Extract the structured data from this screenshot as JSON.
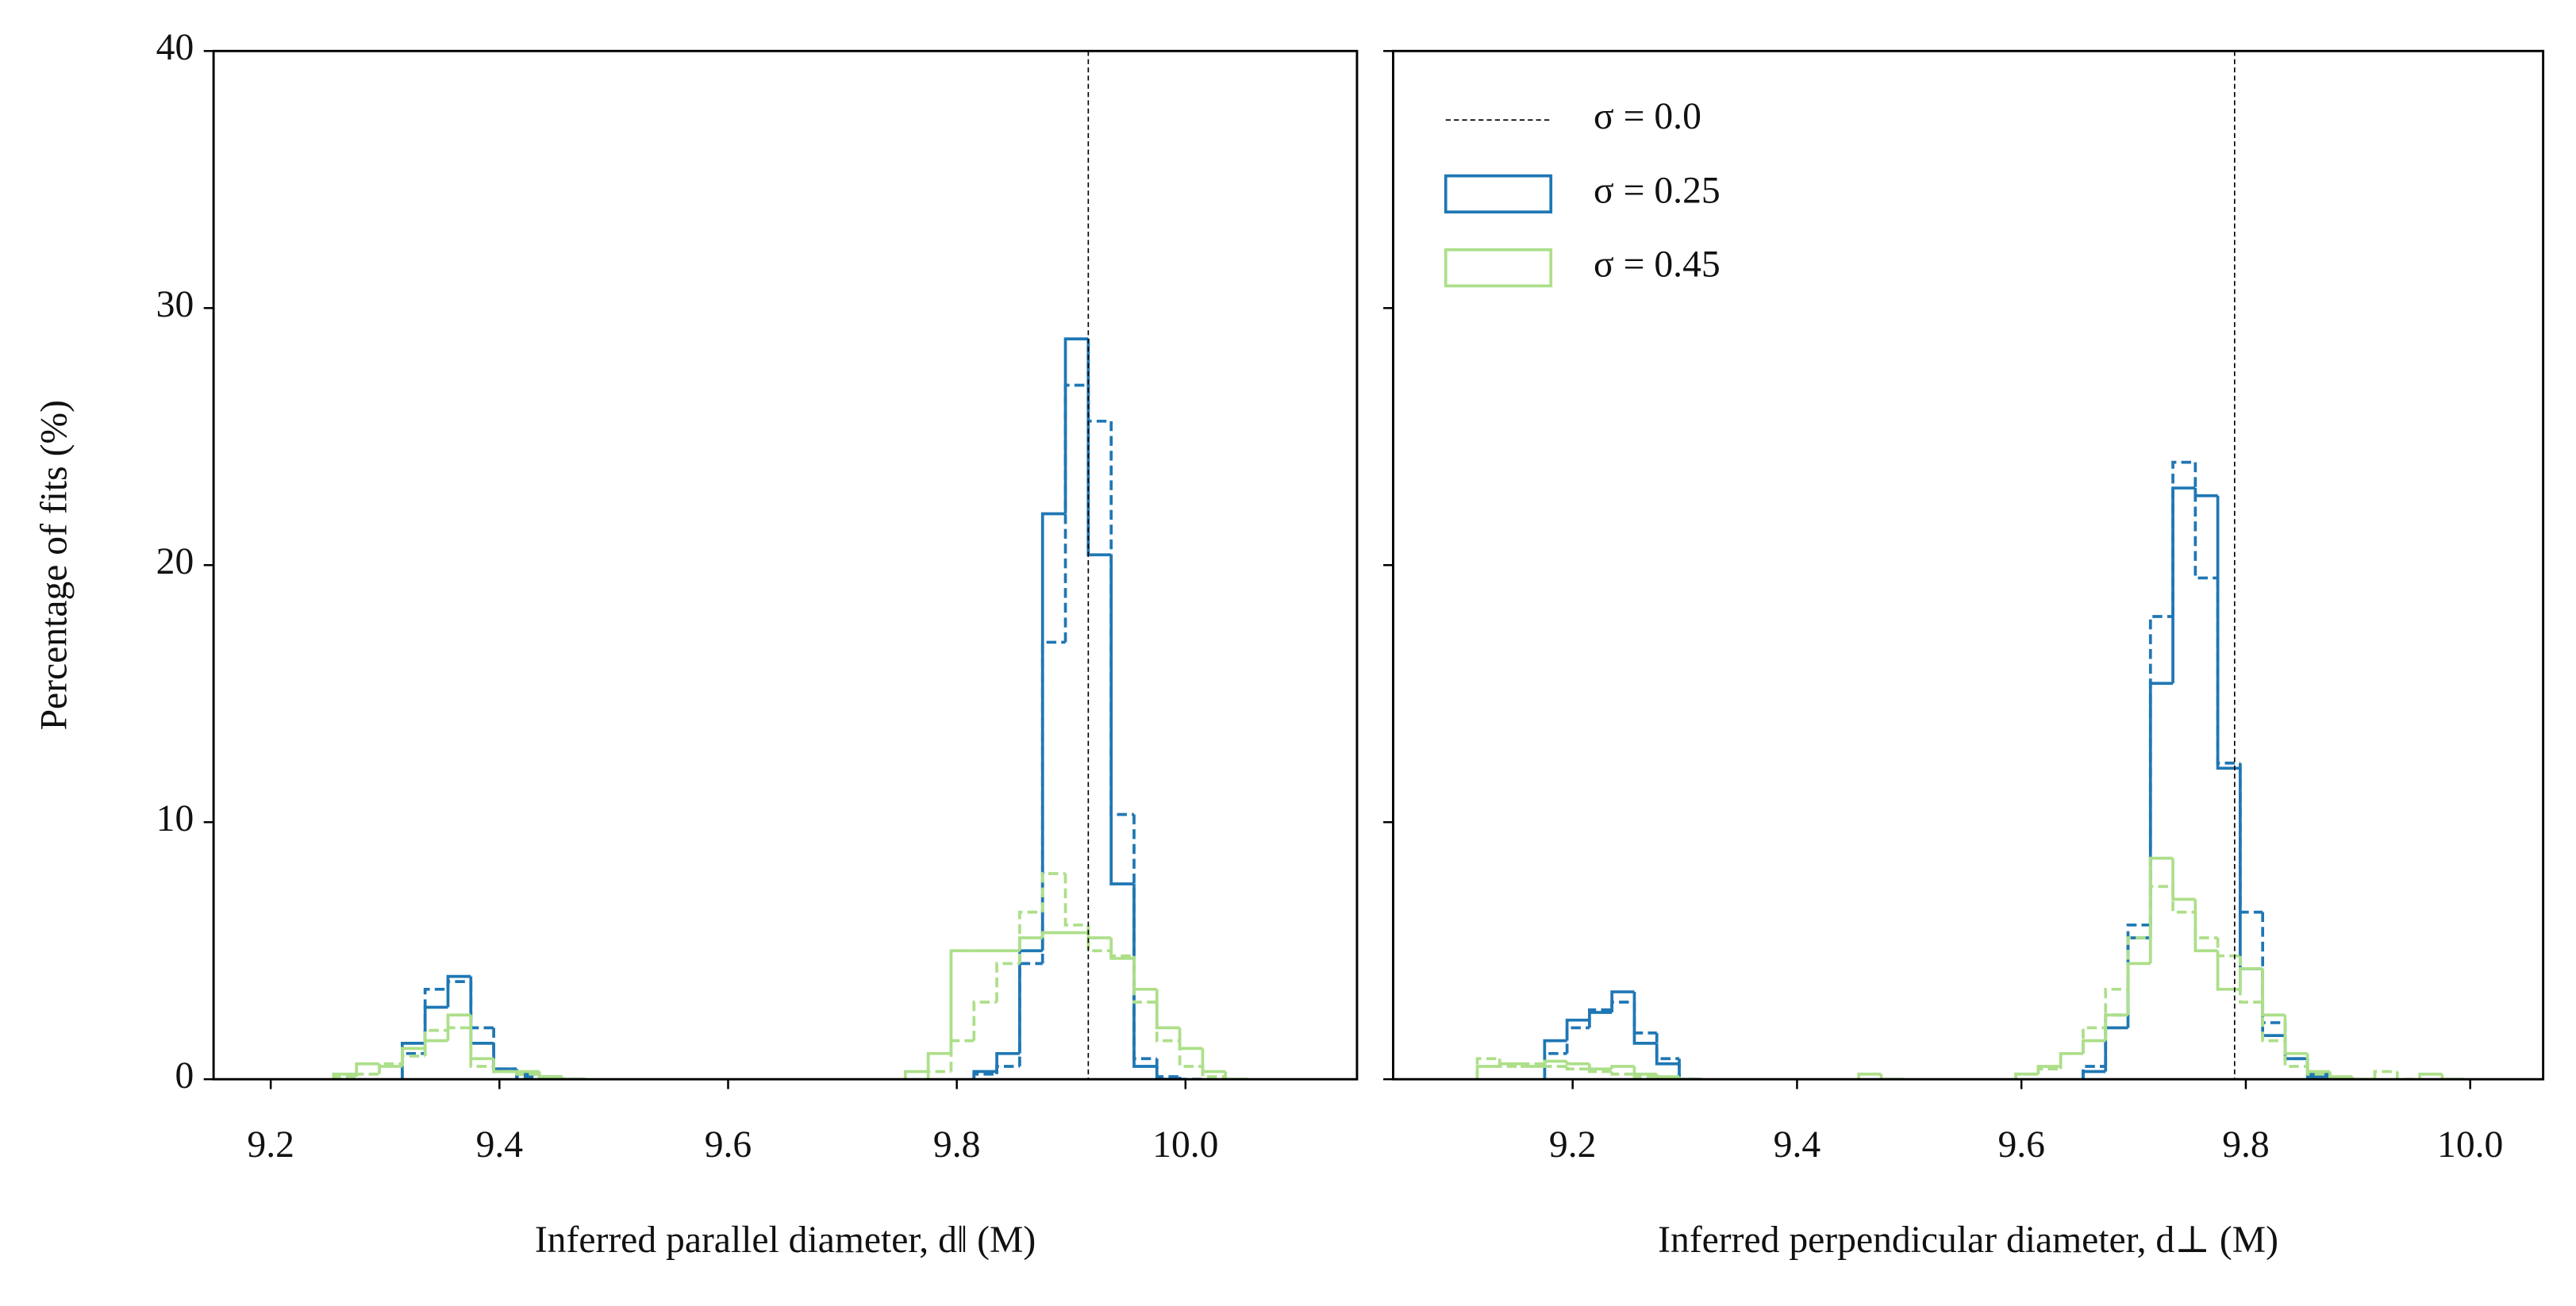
{
  "chart_data": [
    {
      "type": "histogram",
      "xlabel": "Inferred parallel diameter, d‖ (M)",
      "ylabel": "Percentage of fits (%)",
      "xlim": [
        9.15,
        10.15
      ],
      "ylim": [
        0,
        40
      ],
      "xticks": [
        9.2,
        9.4,
        9.6,
        9.8,
        {
          "value": 10,
          "label": "10.0"
        }
      ],
      "yticks": [
        0,
        10,
        20,
        30,
        40
      ],
      "vline": {
        "x": 9.915
      },
      "bins": [
        9.255,
        9.275,
        9.295,
        9.315,
        9.335,
        9.355,
        9.375,
        9.395,
        9.415,
        9.435,
        9.455,
        9.475,
        9.495,
        9.515,
        9.535,
        9.555,
        9.575,
        9.595,
        9.615,
        9.635,
        9.655,
        9.675,
        9.695,
        9.715,
        9.735,
        9.755,
        9.775,
        9.795,
        9.815,
        9.835,
        9.855,
        9.875,
        9.895,
        9.915,
        9.935,
        9.955,
        9.975,
        9.995,
        10.015,
        10.035,
        10.055
      ],
      "series": [
        {
          "color": "#1f77b4",
          "dash": false,
          "values": [
            0,
            0,
            0,
            1.4,
            2.8,
            4.0,
            1.4,
            0.4,
            0.2,
            0.1,
            0,
            0,
            0,
            0,
            0,
            0,
            0,
            0,
            0,
            0,
            0,
            0,
            0,
            0,
            0,
            0,
            0,
            0,
            0.3,
            1.0,
            5,
            22,
            28.8,
            20.4,
            7.6,
            0.5,
            0,
            0,
            0,
            0
          ]
        },
        {
          "color": "#1f77b4",
          "dash": true,
          "values": [
            0,
            0,
            0,
            1.0,
            3.5,
            3.8,
            2.0,
            0.4,
            0.1,
            0,
            0,
            0,
            0,
            0,
            0,
            0,
            0,
            0,
            0,
            0,
            0,
            0,
            0,
            0,
            0,
            0,
            0,
            0,
            0.2,
            0.5,
            4.5,
            17,
            27,
            25.6,
            10.3,
            0.8,
            0.1,
            0,
            0,
            0
          ]
        },
        {
          "color": "#addf8a",
          "dash": false,
          "values": [
            0.2,
            0.6,
            0.5,
            1.2,
            1.5,
            2.5,
            0.8,
            0.3,
            0.3,
            0.1,
            0,
            0,
            0,
            0,
            0,
            0,
            0,
            0,
            0,
            0,
            0,
            0,
            0,
            0,
            0,
            0.3,
            1.0,
            5.0,
            5.0,
            5.0,
            5.5,
            5.7,
            5.7,
            5.5,
            4.7,
            3.5,
            2.0,
            1.2,
            0.3,
            0
          ]
        },
        {
          "color": "#addf8a",
          "dash": true,
          "values": [
            0.1,
            0.2,
            0.6,
            0.9,
            1.9,
            2.0,
            0.5,
            0.3,
            0.2,
            0.1,
            0,
            0,
            0,
            0,
            0,
            0,
            0,
            0,
            0,
            0,
            0,
            0,
            0,
            0,
            0,
            0,
            0.3,
            1.5,
            3.0,
            4.5,
            6.5,
            8.0,
            6.0,
            5.0,
            4.8,
            3.0,
            1.5,
            0.5,
            0.1,
            0
          ]
        }
      ]
    },
    {
      "type": "histogram",
      "xlabel": "Inferred perpendicular diameter, d⊥ (M)",
      "xlim": [
        9.04,
        10.065
      ],
      "ylim": [
        0,
        40
      ],
      "xticks": [
        9.2,
        9.4,
        9.6,
        9.8,
        {
          "value": 10,
          "label": "10.0"
        }
      ],
      "yticks": [
        0,
        10,
        20,
        30,
        40
      ],
      "yticklabels": false,
      "legend": "upper left",
      "vline": {
        "x": 9.79,
        "name": "σ = 0.0"
      },
      "bins": [
        9.115,
        9.135,
        9.155,
        9.175,
        9.195,
        9.215,
        9.235,
        9.255,
        9.275,
        9.295,
        9.315,
        9.335,
        9.355,
        9.375,
        9.395,
        9.415,
        9.435,
        9.455,
        9.475,
        9.495,
        9.515,
        9.535,
        9.555,
        9.575,
        9.595,
        9.615,
        9.635,
        9.655,
        9.675,
        9.695,
        9.715,
        9.735,
        9.755,
        9.775,
        9.795,
        9.815,
        9.835,
        9.855,
        9.875,
        9.895,
        9.915,
        9.935,
        9.955,
        9.975,
        9.995,
        10.015,
        10.035
      ],
      "series": [
        {
          "name": "σ = 0.25",
          "color": "#1f77b4",
          "dash": false,
          "values": [
            0,
            0,
            0,
            1.5,
            2.3,
            2.6,
            3.4,
            1.4,
            0.6,
            0,
            0,
            0,
            0,
            0,
            0,
            0,
            0,
            0,
            0,
            0,
            0,
            0,
            0,
            0,
            0,
            0,
            0,
            0.3,
            2,
            5.5,
            15.4,
            23,
            22.7,
            12.1,
            4.3,
            1.7,
            0.8,
            0.1,
            0,
            0,
            0,
            0,
            0,
            0,
            0,
            0
          ]
        },
        {
          "color": "#1f77b4",
          "dash": true,
          "values": [
            0,
            0,
            0,
            1,
            2,
            2.7,
            3.0,
            1.8,
            0.8,
            0,
            0,
            0,
            0,
            0,
            0,
            0,
            0,
            0,
            0,
            0,
            0,
            0,
            0,
            0,
            0,
            0,
            0,
            0.5,
            2.5,
            6,
            18,
            24,
            19.5,
            12.3,
            6.5,
            2.2,
            0.8,
            0.2,
            0,
            0,
            0,
            0,
            0,
            0,
            0,
            0
          ]
        },
        {
          "name": "σ = 0.45",
          "color": "#addf8a",
          "dash": false,
          "values": [
            0.5,
            0.6,
            0.5,
            0.7,
            0.6,
            0.4,
            0.5,
            0.2,
            0.1,
            0,
            0,
            0,
            0,
            0,
            0,
            0,
            0,
            0.2,
            0,
            0,
            0,
            0,
            0,
            0,
            0.2,
            0.5,
            1.0,
            1.5,
            2.5,
            4.5,
            8.6,
            7.0,
            5.0,
            3.5,
            4.3,
            2.5,
            1.0,
            0.3,
            0.1,
            0,
            0,
            0,
            0.2,
            0,
            0,
            0
          ]
        },
        {
          "color": "#addf8a",
          "dash": true,
          "values": [
            0.8,
            0.5,
            0.6,
            0.5,
            0.4,
            0.3,
            0.2,
            0.1,
            0,
            0,
            0,
            0,
            0,
            0,
            0,
            0,
            0,
            0,
            0,
            0,
            0,
            0,
            0,
            0,
            0.2,
            0.4,
            1,
            2,
            3.5,
            5.5,
            7.5,
            6.5,
            5.5,
            4.8,
            3,
            1.5,
            0.5,
            0.2,
            0,
            0,
            0.3,
            0,
            0,
            0,
            0,
            0
          ]
        }
      ]
    }
  ]
}
